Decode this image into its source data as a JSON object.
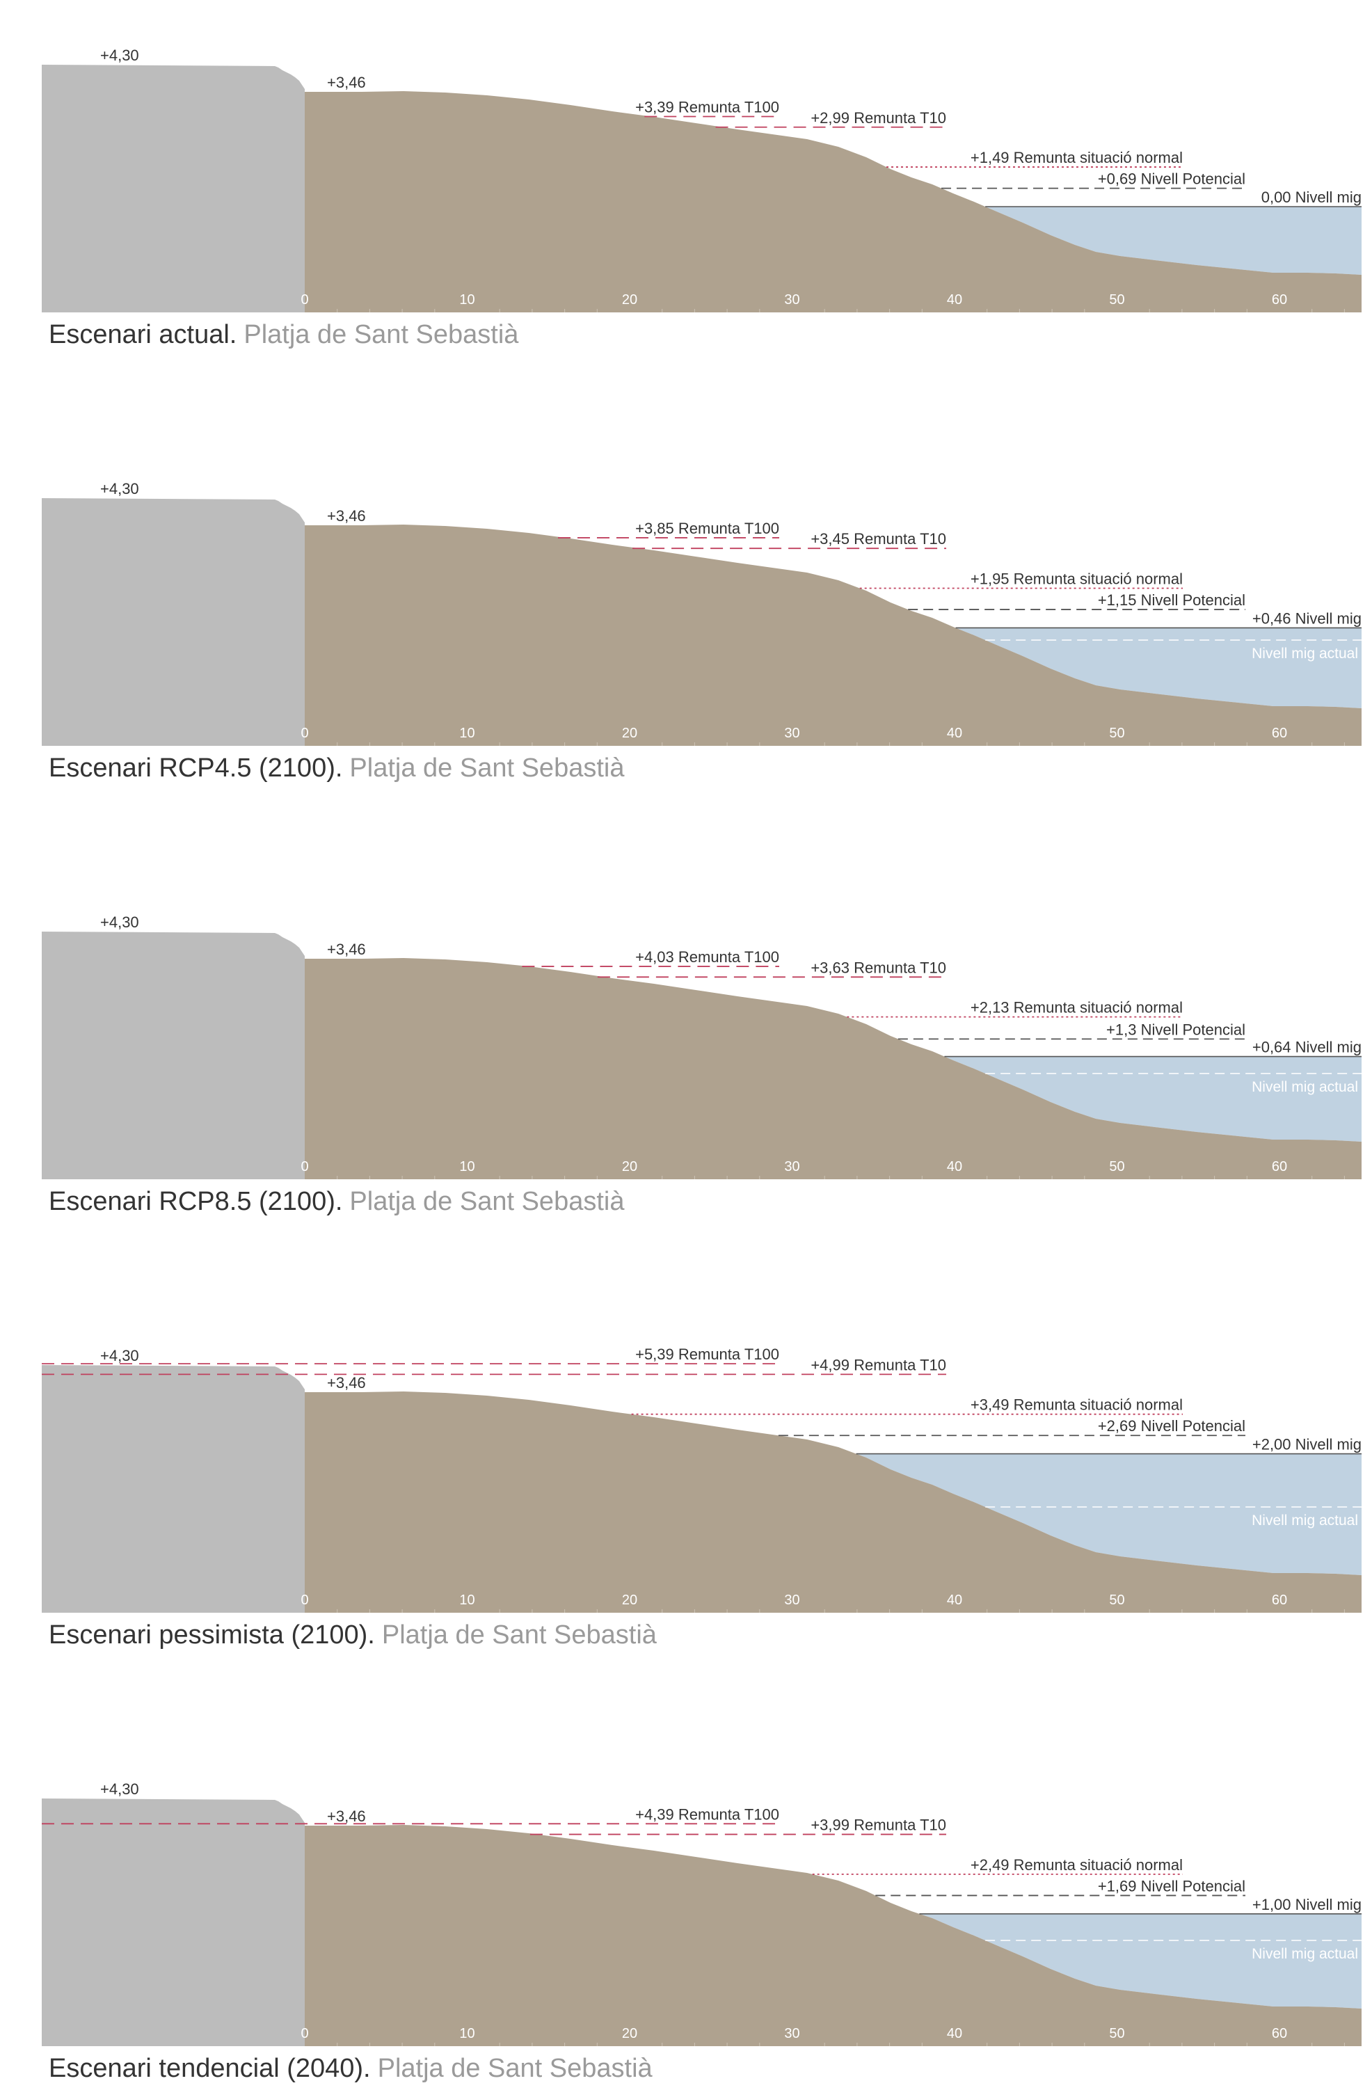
{
  "colors": {
    "wall": "#bcbcbc",
    "beach": "#afa28f",
    "water": "#c0d2e1",
    "runup_storm": "#c0405e",
    "runup_normal": "#c0405e",
    "potential": "#555555",
    "mean_line": "#555555",
    "current_mean": "#ffffff",
    "text": "#333333",
    "subtitle": "#9a9a9a"
  },
  "axis_ticks": [
    "0",
    "10",
    "20",
    "30",
    "40",
    "50",
    "60"
  ],
  "wall_label": "+4,30",
  "beach_top_label": "+3,46",
  "location": "Platja de Sant Sebastià",
  "current_mean_label": "Nivell mig actual",
  "scenarios": [
    {
      "title": "Escenari actual.",
      "subtitle": "Platja de Sant Sebastià",
      "t100": 3.39,
      "t100_label": "+3,39 Remunta T100",
      "t10": 2.99,
      "t10_label": "+2,99 Remunta T10",
      "normal": 1.49,
      "normal_label": "+1,49 Remunta situació normal",
      "potential": 0.69,
      "potential_label": "+0,69 Nivell Potencial",
      "mean": 0.0,
      "mean_label": "0,00 Nivell mig",
      "show_current_mean": false
    },
    {
      "title": "Escenari RCP4.5 (2100).",
      "subtitle": "Platja de Sant Sebastià",
      "t100": 3.85,
      "t100_label": "+3,85 Remunta T100",
      "t10": 3.45,
      "t10_label": "+3,45 Remunta T10",
      "normal": 1.95,
      "normal_label": "+1,95 Remunta situació normal",
      "potential": 1.15,
      "potential_label": "+1,15 Nivell Potencial",
      "mean": 0.46,
      "mean_label": "+0,46 Nivell mig",
      "show_current_mean": true
    },
    {
      "title": "Escenari RCP8.5 (2100).",
      "subtitle": "Platja de Sant Sebastià",
      "t100": 4.03,
      "t100_label": "+4,03 Remunta T100",
      "t10": 3.63,
      "t10_label": "+3,63 Remunta T10",
      "normal": 2.13,
      "normal_label": "+2,13 Remunta situació normal",
      "potential": 1.3,
      "potential_label": "+1,3 Nivell Potencial",
      "mean": 0.64,
      "mean_label": "+0,64 Nivell mig",
      "show_current_mean": true
    },
    {
      "title": "Escenari pessimista (2100).",
      "subtitle": "Platja de Sant Sebastià",
      "t100": 5.39,
      "t100_label": "+5,39 Remunta T100",
      "t10": 4.99,
      "t10_label": "+4,99 Remunta T10",
      "normal": 3.49,
      "normal_label": "+3,49 Remunta situació normal",
      "potential": 2.69,
      "potential_label": "+2,69 Nivell Potencial",
      "mean": 2.0,
      "mean_label": "+2,00 Nivell mig",
      "show_current_mean": true
    },
    {
      "title": "Escenari tendencial (2040).",
      "subtitle": "Platja de Sant Sebastià",
      "t100": 4.39,
      "t100_label": "+4,39 Remunta T100",
      "t10": 3.99,
      "t10_label": "+3,99 Remunta T10",
      "normal": 2.49,
      "normal_label": "+2,49 Remunta situació normal",
      "potential": 1.69,
      "potential_label": "+1,69 Nivell Potencial",
      "mean": 1.0,
      "mean_label": "+1,00 Nivell mig",
      "show_current_mean": true
    }
  ]
}
